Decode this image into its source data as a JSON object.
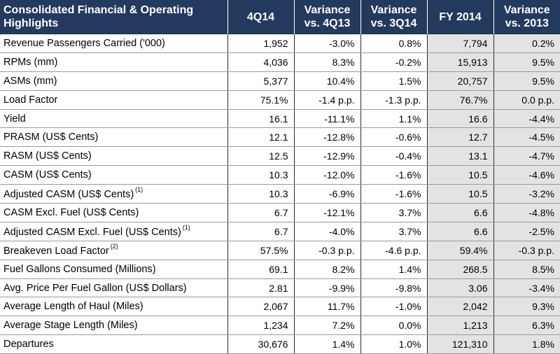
{
  "header": {
    "label": "Consolidated Financial & Operating Highlights",
    "col_4q14": "4Q14",
    "col_var_4q13": "Variance vs. 4Q13",
    "col_var_3q14": "Variance vs. 3Q14",
    "col_fy2014": "FY 2014",
    "col_var_2013": "Variance vs. 2013"
  },
  "rows": [
    {
      "label": "Revenue Passengers Carried ('000)",
      "note": "",
      "q4": "1,952",
      "v13": "-3.0%",
      "v3q": "0.8%",
      "fy": "7,794",
      "vfy": "0.2%"
    },
    {
      "label": "RPMs (mm)",
      "note": "",
      "q4": "4,036",
      "v13": "8.3%",
      "v3q": "-0.2%",
      "fy": "15,913",
      "vfy": "9.5%"
    },
    {
      "label": "ASMs (mm)",
      "note": "",
      "q4": "5,377",
      "v13": "10.4%",
      "v3q": "1.5%",
      "fy": "20,757",
      "vfy": "9.5%"
    },
    {
      "label": "Load Factor",
      "note": "",
      "q4": "75.1%",
      "v13": "-1.4 p.p.",
      "v3q": "-1.3 p.p.",
      "fy": "76.7%",
      "vfy": "0.0 p.p."
    },
    {
      "label": "Yield",
      "note": "",
      "q4": "16.1",
      "v13": "-11.1%",
      "v3q": "1.1%",
      "fy": "16.6",
      "vfy": "-4.4%"
    },
    {
      "label": "PRASM (US$ Cents)",
      "note": "",
      "q4": "12.1",
      "v13": "-12.8%",
      "v3q": "-0.6%",
      "fy": "12.7",
      "vfy": "-4.5%"
    },
    {
      "label": "RASM (US$ Cents)",
      "note": "",
      "q4": "12.5",
      "v13": "-12.9%",
      "v3q": "-0.4%",
      "fy": "13.1",
      "vfy": "-4.7%"
    },
    {
      "label": "CASM (US$ Cents)",
      "note": "",
      "q4": "10.3",
      "v13": "-12.0%",
      "v3q": "-1.6%",
      "fy": "10.5",
      "vfy": "-4.6%"
    },
    {
      "label": "Adjusted CASM (US$ Cents)",
      "note": "(1)",
      "q4": "10.3",
      "v13": "-6.9%",
      "v3q": "-1.6%",
      "fy": "10.5",
      "vfy": "-3.2%"
    },
    {
      "label": "CASM Excl. Fuel (US$ Cents)",
      "note": "",
      "q4": "6.7",
      "v13": "-12.1%",
      "v3q": "3.7%",
      "fy": "6.6",
      "vfy": "-4.8%"
    },
    {
      "label": "Adjusted CASM Excl. Fuel (US$ Cents)",
      "note": "(1)",
      "q4": "6.7",
      "v13": "-4.0%",
      "v3q": "3.7%",
      "fy": "6.6",
      "vfy": "-2.5%"
    },
    {
      "label": "Breakeven Load Factor",
      "note": "(2)",
      "q4": "57.5%",
      "v13": "-0.3 p.p.",
      "v3q": "-4.6 p.p.",
      "fy": "59.4%",
      "vfy": "-0.3 p.p."
    },
    {
      "label": "Fuel Gallons Consumed (Millions)",
      "note": "",
      "q4": "69.1",
      "v13": "8.2%",
      "v3q": "1.4%",
      "fy": "268.5",
      "vfy": "8.5%"
    },
    {
      "label": "Avg. Price Per Fuel Gallon (US$ Dollars)",
      "note": "",
      "q4": "2.81",
      "v13": "-9.9%",
      "v3q": "-9.8%",
      "fy": "3.06",
      "vfy": "-3.4%"
    },
    {
      "label": "Average Length of Haul (Miles)",
      "note": "",
      "q4": "2,067",
      "v13": "11.7%",
      "v3q": "-1.0%",
      "fy": "2,042",
      "vfy": "9.3%"
    },
    {
      "label": "Average Stage Length (Miles)",
      "note": "",
      "q4": "1,234",
      "v13": "7.2%",
      "v3q": "0.0%",
      "fy": "1,213",
      "vfy": "6.3%"
    },
    {
      "label": "Departures",
      "note": "",
      "q4": "30,676",
      "v13": "1.4%",
      "v3q": "1.0%",
      "fy": "121,310",
      "vfy": "1.8%"
    }
  ]
}
